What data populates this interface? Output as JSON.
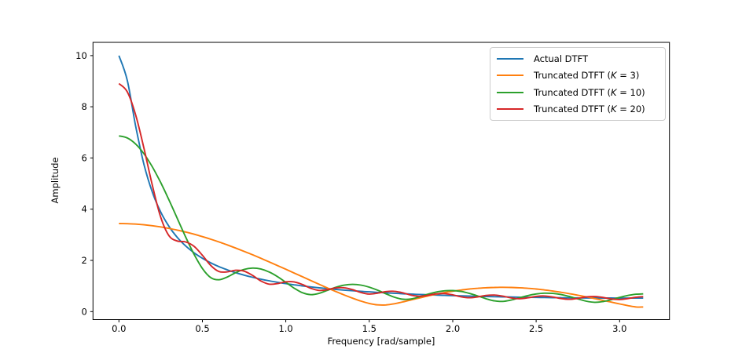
{
  "colors": {
    "background": "#ffffff",
    "axis": "#000000",
    "tick_label": "#000000",
    "legend_border": "#cccccc"
  },
  "chart_data": {
    "type": "line",
    "title": "",
    "xlabel": "Frequency [rad/sample]",
    "ylabel": "Amplitude",
    "grid": false,
    "legend_position": "upper right",
    "xlim": [
      -0.1554,
      3.2987
    ],
    "ylim": [
      -0.3124,
      10.5164
    ],
    "xticks": {
      "values": [
        0,
        0.5,
        1.0,
        1.5,
        2.0,
        2.5,
        3.0
      ],
      "labels": [
        "0.0",
        "0.5",
        "1.0",
        "1.5",
        "2.0",
        "2.5",
        "3.0"
      ]
    },
    "yticks": {
      "values": [
        0,
        2,
        4,
        6,
        8,
        10
      ],
      "labels": [
        "0",
        "2",
        "4",
        "6",
        "8",
        "10"
      ]
    },
    "x": [
      0,
      0.05,
      0.1,
      0.15,
      0.2,
      0.25,
      0.3,
      0.35,
      0.4,
      0.45,
      0.5,
      0.55,
      0.6,
      0.65,
      0.7,
      0.75,
      0.8,
      0.85,
      0.9,
      0.95,
      1,
      1.05,
      1.1,
      1.15,
      1.2,
      1.25,
      1.3,
      1.35,
      1.4,
      1.45,
      1.5,
      1.55,
      1.6,
      1.65,
      1.7,
      1.75,
      1.8,
      1.85,
      1.9,
      1.95,
      2,
      2.05,
      2.1,
      2.15,
      2.2,
      2.25,
      2.3,
      2.35,
      2.4,
      2.45,
      2.5,
      2.55,
      2.6,
      2.65,
      2.7,
      2.75,
      2.8,
      2.85,
      2.9,
      2.95,
      3,
      3.05,
      3.1,
      3.14159
    ],
    "series": [
      {
        "name": "Actual DTFT",
        "label_pre": "Actual DTFT",
        "label_math": "",
        "label_post": "",
        "color": "#1f77b4",
        "values": [
          10.0,
          9.035,
          7.256,
          5.753,
          4.669,
          3.894,
          3.326,
          2.897,
          2.564,
          2.299,
          2.084,
          1.905,
          1.756,
          1.629,
          1.519,
          1.424,
          1.341,
          1.268,
          1.203,
          1.145,
          1.093,
          1.046,
          1.003,
          0.965,
          0.929,
          0.897,
          0.868,
          0.84,
          0.815,
          0.792,
          0.771,
          0.751,
          0.733,
          0.716,
          0.7,
          0.685,
          0.671,
          0.659,
          0.647,
          0.635,
          0.625,
          0.615,
          0.606,
          0.598,
          0.59,
          0.583,
          0.576,
          0.57,
          0.565,
          0.559,
          0.555,
          0.55,
          0.546,
          0.543,
          0.539,
          0.537,
          0.534,
          0.532,
          0.53,
          0.529,
          0.528,
          0.527,
          0.526,
          0.526
        ]
      },
      {
        "name": "Truncated DTFT (K = 3)",
        "label_pre": "Truncated DTFT (",
        "label_math": "K",
        "label_post": " = 3)",
        "color": "#ff7f0e",
        "values": [
          3.439,
          3.434,
          3.418,
          3.391,
          3.354,
          3.307,
          3.25,
          3.184,
          3.108,
          3.023,
          2.929,
          2.828,
          2.719,
          2.603,
          2.481,
          2.353,
          2.22,
          2.083,
          1.942,
          1.799,
          1.653,
          1.506,
          1.359,
          1.212,
          1.066,
          0.923,
          0.784,
          0.65,
          0.524,
          0.411,
          0.318,
          0.263,
          0.261,
          0.307,
          0.377,
          0.455,
          0.534,
          0.609,
          0.678,
          0.741,
          0.796,
          0.843,
          0.881,
          0.911,
          0.932,
          0.945,
          0.949,
          0.944,
          0.932,
          0.911,
          0.882,
          0.847,
          0.804,
          0.755,
          0.7,
          0.64,
          0.576,
          0.509,
          0.439,
          0.37,
          0.3,
          0.234,
          0.181,
          0.181
        ]
      },
      {
        "name": "Truncated DTFT (K = 10)",
        "label_pre": "Truncated DTFT (",
        "label_math": "K",
        "label_post": " = 10)",
        "color": "#2ca02c",
        "values": [
          6.862,
          6.782,
          6.546,
          6.165,
          5.656,
          5.045,
          4.36,
          3.636,
          2.914,
          2.242,
          1.685,
          1.331,
          1.244,
          1.355,
          1.521,
          1.649,
          1.7,
          1.665,
          1.548,
          1.366,
          1.144,
          0.917,
          0.736,
          0.663,
          0.715,
          0.833,
          0.95,
          1.032,
          1.062,
          1.035,
          0.956,
          0.837,
          0.695,
          0.563,
          0.484,
          0.494,
          0.575,
          0.676,
          0.762,
          0.813,
          0.821,
          0.786,
          0.712,
          0.611,
          0.503,
          0.419,
          0.399,
          0.451,
          0.539,
          0.626,
          0.69,
          0.719,
          0.711,
          0.665,
          0.588,
          0.495,
          0.409,
          0.366,
          0.391,
          0.466,
          0.555,
          0.631,
          0.679,
          0.691
        ]
      },
      {
        "name": "Truncated DTFT (K = 20)",
        "label_pre": "Truncated DTFT (",
        "label_math": "K",
        "label_post": " = 20)",
        "color": "#d62728",
        "values": [
          8.906,
          8.586,
          7.688,
          6.383,
          4.939,
          3.694,
          2.962,
          2.758,
          2.72,
          2.551,
          2.201,
          1.804,
          1.564,
          1.553,
          1.614,
          1.58,
          1.415,
          1.199,
          1.071,
          1.094,
          1.163,
          1.16,
          1.057,
          0.91,
          0.828,
          0.859,
          0.924,
          0.932,
          0.858,
          0.746,
          0.687,
          0.72,
          0.782,
          0.794,
          0.735,
          0.644,
          0.598,
          0.633,
          0.691,
          0.705,
          0.655,
          0.578,
          0.541,
          0.576,
          0.631,
          0.646,
          0.604,
          0.535,
          0.503,
          0.539,
          0.594,
          0.61,
          0.571,
          0.508,
          0.481,
          0.518,
          0.573,
          0.589,
          0.553,
          0.494,
          0.471,
          0.51,
          0.565,
          0.584
        ]
      }
    ]
  }
}
